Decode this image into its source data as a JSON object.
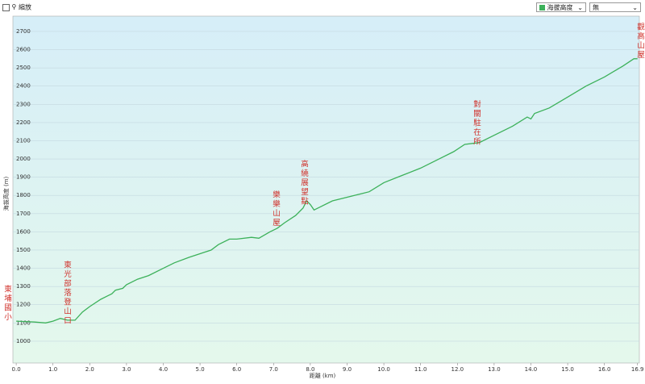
{
  "toolbar": {
    "zoom_label": "縮放",
    "metric": "海拔高度",
    "overlay": "無"
  },
  "chart_data": {
    "type": "line",
    "xlabel": "距離 (km)",
    "ylabel": "海拔高度 (m)",
    "x": [
      0,
      0.5,
      0.8,
      1.0,
      1.2,
      1.4,
      1.6,
      1.8,
      2.0,
      2.3,
      2.5,
      2.6,
      2.7,
      2.9,
      3.0,
      3.3,
      3.6,
      4.0,
      4.3,
      4.7,
      5.0,
      5.3,
      5.5,
      5.8,
      6.0,
      6.4,
      6.6,
      6.9,
      7.1,
      7.3,
      7.6,
      7.8,
      7.9,
      8.0,
      8.1,
      8.3,
      8.6,
      9.0,
      9.4,
      9.6,
      10.0,
      10.5,
      11.0,
      11.5,
      11.9,
      12.2,
      12.6,
      13.0,
      13.5,
      13.9,
      14.0,
      14.1,
      14.5,
      15.0,
      15.5,
      16.0,
      16.5,
      16.8,
      16.9
    ],
    "series": [
      {
        "name": "海拔高度",
        "color": "#3cb15a",
        "values": [
          1110,
          1105,
          1100,
          1110,
          1125,
          1115,
          1115,
          1160,
          1190,
          1230,
          1250,
          1260,
          1280,
          1290,
          1310,
          1340,
          1360,
          1400,
          1430,
          1460,
          1480,
          1500,
          1530,
          1560,
          1560,
          1570,
          1565,
          1600,
          1620,
          1650,
          1690,
          1730,
          1770,
          1750,
          1720,
          1740,
          1770,
          1790,
          1810,
          1820,
          1870,
          1910,
          1950,
          2000,
          2040,
          2080,
          2090,
          2130,
          2180,
          2230,
          2220,
          2250,
          2280,
          2340,
          2400,
          2450,
          2510,
          2550,
          2550
        ]
      }
    ],
    "xlim": [
      -0.09,
      16.95
    ],
    "ylim": [
      880,
      2784
    ],
    "xticks": [
      {
        "value": 0,
        "label": "0.0"
      },
      {
        "value": 1,
        "label": "1.0"
      },
      {
        "value": 2,
        "label": "2.0"
      },
      {
        "value": 3,
        "label": "3.0"
      },
      {
        "value": 4,
        "label": "4.0"
      },
      {
        "value": 5,
        "label": "5.0"
      },
      {
        "value": 6,
        "label": "6.0"
      },
      {
        "value": 7,
        "label": "7.0"
      },
      {
        "value": 8,
        "label": "8.0"
      },
      {
        "value": 9,
        "label": "9.0"
      },
      {
        "value": 10,
        "label": "10.0"
      },
      {
        "value": 11,
        "label": "11.0"
      },
      {
        "value": 12,
        "label": "12.0"
      },
      {
        "value": 13,
        "label": "13.0"
      },
      {
        "value": 14,
        "label": "14.0"
      },
      {
        "value": 15,
        "label": "15.0"
      },
      {
        "value": 16,
        "label": "16.0"
      },
      16.9
    ],
    "yticks": [
      1000,
      1100,
      1200,
      1300,
      1400,
      1500,
      1600,
      1700,
      1800,
      1900,
      2000,
      2100,
      2200,
      2300,
      2400,
      2500,
      2600,
      2700
    ],
    "grid": true,
    "annotations": [
      "東埔國小",
      "東光部落登山口",
      "樂樂山屋",
      "高繞展望點",
      "對關駐在所",
      "觀高山屋"
    ]
  }
}
